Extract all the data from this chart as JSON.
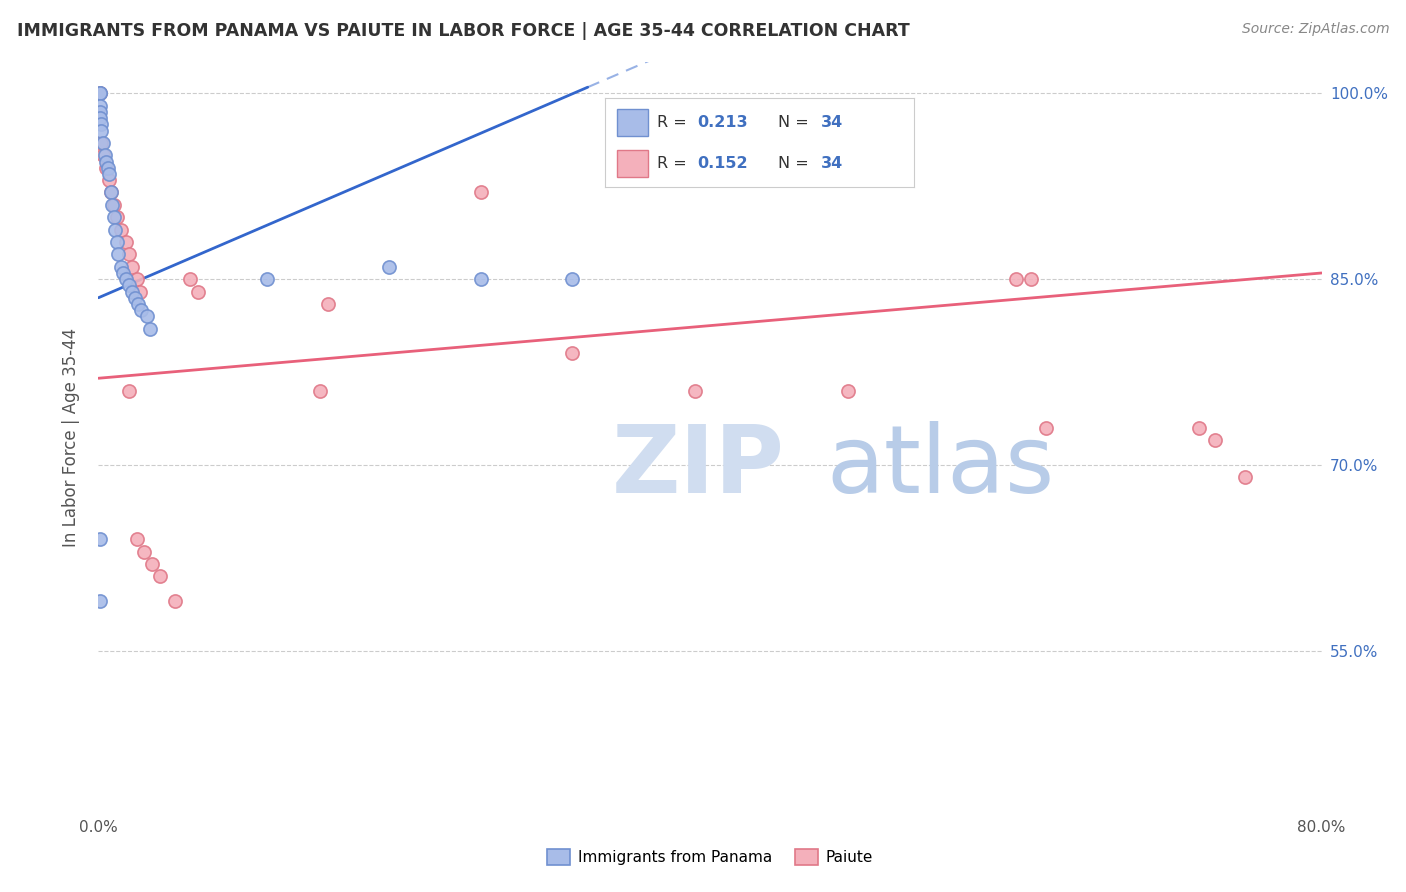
{
  "title": "IMMIGRANTS FROM PANAMA VS PAIUTE IN LABOR FORCE | AGE 35-44 CORRELATION CHART",
  "source": "Source: ZipAtlas.com",
  "ylabel": "In Labor Force | Age 35-44",
  "x_min": 0.0,
  "x_max": 0.8,
  "y_min": 0.42,
  "y_max": 1.025,
  "x_ticks": [
    0.0,
    0.1,
    0.2,
    0.3,
    0.4,
    0.5,
    0.6,
    0.7,
    0.8
  ],
  "x_tick_labels": [
    "0.0%",
    "",
    "",
    "",
    "",
    "",
    "",
    "",
    "80.0%"
  ],
  "y_ticks": [
    0.55,
    0.7,
    0.85,
    1.0
  ],
  "y_tick_labels": [
    "55.0%",
    "70.0%",
    "85.0%",
    "100.0%"
  ],
  "panama_color": "#a8bce8",
  "paiute_color": "#f4b0bb",
  "panama_edge": "#7090d0",
  "paiute_edge": "#e07888",
  "trend_panama_color": "#3366cc",
  "trend_paiute_color": "#e8607a",
  "background_color": "#ffffff",
  "grid_color": "#cccccc",
  "panama_R": "0.213",
  "panama_N": "34",
  "paiute_R": "0.152",
  "paiute_N": "34",
  "panama_x": [
    0.001,
    0.001,
    0.001,
    0.001,
    0.001,
    0.002,
    0.002,
    0.003,
    0.004,
    0.005,
    0.006,
    0.007,
    0.008,
    0.009,
    0.01,
    0.011,
    0.012,
    0.013,
    0.015,
    0.016,
    0.018,
    0.02,
    0.022,
    0.024,
    0.026,
    0.028,
    0.032,
    0.034,
    0.11,
    0.19,
    0.25,
    0.31,
    0.001,
    0.001
  ],
  "panama_y": [
    1.0,
    1.0,
    0.99,
    0.985,
    0.98,
    0.975,
    0.97,
    0.96,
    0.95,
    0.945,
    0.94,
    0.935,
    0.92,
    0.91,
    0.9,
    0.89,
    0.88,
    0.87,
    0.86,
    0.855,
    0.85,
    0.845,
    0.84,
    0.835,
    0.83,
    0.825,
    0.82,
    0.81,
    0.85,
    0.86,
    0.85,
    0.85,
    0.64,
    0.59
  ],
  "paiute_x": [
    0.001,
    0.002,
    0.003,
    0.005,
    0.007,
    0.008,
    0.01,
    0.012,
    0.015,
    0.018,
    0.02,
    0.022,
    0.025,
    0.027,
    0.06,
    0.065,
    0.145,
    0.15,
    0.25,
    0.31,
    0.39,
    0.49,
    0.6,
    0.61,
    0.62,
    0.72,
    0.73,
    0.75,
    0.02,
    0.025,
    0.03,
    0.035,
    0.04,
    0.05
  ],
  "paiute_y": [
    1.0,
    0.96,
    0.95,
    0.94,
    0.93,
    0.92,
    0.91,
    0.9,
    0.89,
    0.88,
    0.87,
    0.86,
    0.85,
    0.84,
    0.85,
    0.84,
    0.76,
    0.83,
    0.92,
    0.79,
    0.76,
    0.76,
    0.85,
    0.85,
    0.73,
    0.73,
    0.72,
    0.69,
    0.76,
    0.64,
    0.63,
    0.62,
    0.61,
    0.59
  ],
  "watermark_zip": "ZIP",
  "watermark_atlas": "atlas",
  "marker_size": 90,
  "trend_pan_x0": 0.0,
  "trend_pan_y0": 0.835,
  "trend_pan_x1": 0.32,
  "trend_pan_y1": 1.005,
  "trend_pai_x0": 0.0,
  "trend_pai_y0": 0.77,
  "trend_pai_x1": 0.8,
  "trend_pai_y1": 0.855
}
